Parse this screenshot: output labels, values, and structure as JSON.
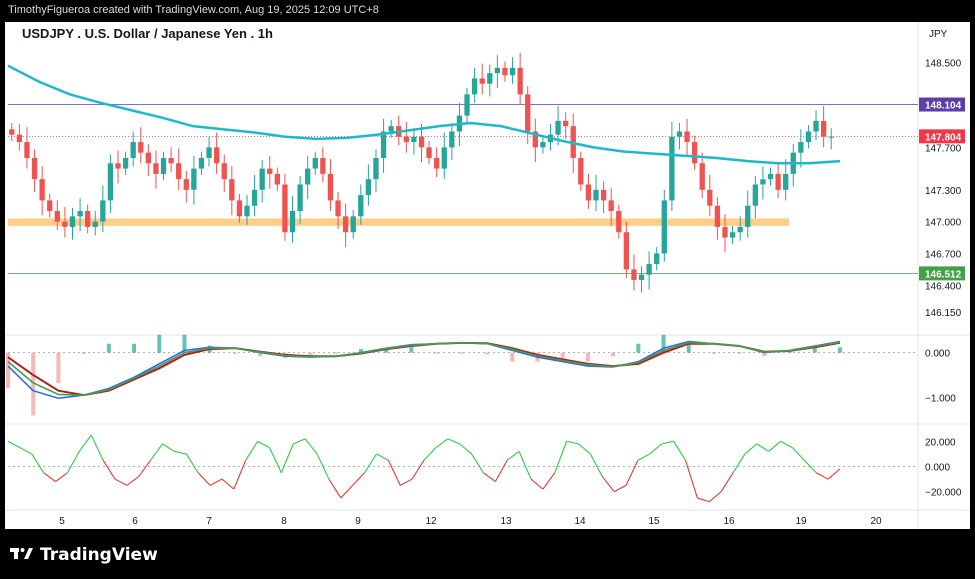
{
  "header": {
    "credit": "TimothyFigueroa created with TradingView.com, Aug 19, 2025 12:09 UTC+8"
  },
  "chart_title": "USDJPY . U.S. Dollar / Japanese Yen . 1h",
  "currency": "JPY",
  "footer": {
    "brand": "TradingView",
    "logo_icon": "tradingview-logo-icon"
  },
  "colors": {
    "up": "#26a69a",
    "down": "#ef5350",
    "ma": "#1fb8c9",
    "zone": "#ffcf8a",
    "resistance_line": "#5b3fa8",
    "support_line": "#43a047",
    "current_price": "#f23645"
  },
  "chart_data": [
    {
      "type": "candlestick",
      "timeframe": "1h",
      "x_ticks": [
        "5",
        "6",
        "7",
        "8",
        "9",
        "12",
        "13",
        "14",
        "15",
        "16",
        "19",
        "20"
      ],
      "y_ticks": [
        "148.500",
        "147.700",
        "147.300",
        "147.000",
        "146.700",
        "146.400",
        "146.150"
      ],
      "ylim": [
        145.95,
        148.75
      ],
      "key_prices": {
        "resistance": "148.104",
        "current": "147.804",
        "support": "146.512"
      },
      "zone": [
        146.96,
        147.03
      ],
      "moving_average": [
        148.47,
        148.32,
        148.2,
        148.12,
        148.05,
        147.98,
        147.9,
        147.87,
        147.84,
        147.8,
        147.78,
        147.79,
        147.82,
        147.86,
        147.9,
        147.93,
        147.9,
        147.83,
        147.76,
        147.7,
        147.66,
        147.64,
        147.62,
        147.6,
        147.57,
        147.55,
        147.55,
        147.57
      ],
      "closes": [
        147.82,
        147.75,
        147.6,
        147.4,
        147.2,
        147.1,
        147.0,
        146.95,
        147.05,
        147.1,
        146.95,
        147.0,
        147.2,
        147.55,
        147.5,
        147.6,
        147.75,
        147.65,
        147.55,
        147.45,
        147.6,
        147.55,
        147.4,
        147.3,
        147.5,
        147.6,
        147.7,
        147.55,
        147.4,
        147.2,
        147.05,
        147.15,
        147.3,
        147.5,
        147.45,
        147.35,
        146.9,
        147.1,
        147.35,
        147.5,
        147.6,
        147.45,
        147.2,
        147.05,
        146.9,
        147.05,
        147.25,
        147.4,
        147.6,
        147.85,
        147.9,
        147.8,
        147.75,
        147.8,
        147.7,
        147.6,
        147.5,
        147.7,
        147.85,
        148.0,
        148.2,
        148.35,
        148.3,
        148.4,
        148.45,
        148.38,
        148.45,
        148.2,
        147.85,
        147.7,
        147.75,
        147.82,
        147.95,
        147.9,
        147.6,
        147.35,
        147.2,
        147.3,
        147.2,
        147.1,
        146.9,
        146.55,
        146.45,
        146.5,
        146.6,
        146.7,
        147.2,
        147.8,
        147.85,
        147.75,
        147.55,
        147.3,
        147.15,
        146.95,
        146.85,
        146.9,
        146.95,
        147.15,
        147.35,
        147.4,
        147.45,
        147.3,
        147.45,
        147.65,
        147.75,
        147.85,
        147.95,
        147.8,
        147.8
      ],
      "macd": {
        "ylim": [
          -1.55,
          0.35
        ],
        "y_ticks": [
          "0.000",
          "−1.000"
        ],
        "macd_line": [
          -0.3,
          -0.85,
          -1.02,
          -0.95,
          -0.8,
          -0.55,
          -0.25,
          0.05,
          0.12,
          0.1,
          0.0,
          -0.08,
          -0.1,
          -0.08,
          0.0,
          0.1,
          0.18,
          0.2,
          0.22,
          0.2,
          0.05,
          -0.1,
          -0.2,
          -0.3,
          -0.32,
          -0.2,
          0.1,
          0.25,
          0.2,
          0.15,
          0.0,
          0.05,
          0.15,
          0.25
        ],
        "signal_line": [
          -0.1,
          -0.5,
          -0.85,
          -0.95,
          -0.85,
          -0.6,
          -0.35,
          -0.05,
          0.08,
          0.1,
          0.02,
          -0.05,
          -0.08,
          -0.08,
          -0.02,
          0.08,
          0.15,
          0.2,
          0.22,
          0.21,
          0.1,
          -0.05,
          -0.15,
          -0.25,
          -0.3,
          -0.25,
          0.0,
          0.2,
          0.2,
          0.15,
          0.02,
          0.04,
          0.12,
          0.22
        ]
      },
      "oscillator": {
        "ylim": [
          -33,
          33
        ],
        "y_ticks": [
          "20.000",
          "0.000",
          "−20.000"
        ],
        "values": [
          20,
          15,
          10,
          -5,
          -12,
          -5,
          12,
          25,
          5,
          -10,
          -15,
          -8,
          5,
          18,
          12,
          10,
          -5,
          -15,
          -10,
          -18,
          5,
          20,
          15,
          -5,
          18,
          22,
          10,
          -10,
          -25,
          -15,
          -5,
          10,
          5,
          -15,
          -10,
          5,
          15,
          22,
          18,
          10,
          -5,
          -12,
          5,
          12,
          -10,
          -18,
          -5,
          20,
          18,
          10,
          -8,
          -20,
          -15,
          5,
          10,
          18,
          20,
          5,
          -25,
          -28,
          -20,
          -5,
          10,
          18,
          12,
          20,
          15,
          5,
          -5,
          -10,
          -2
        ]
      }
    }
  ]
}
